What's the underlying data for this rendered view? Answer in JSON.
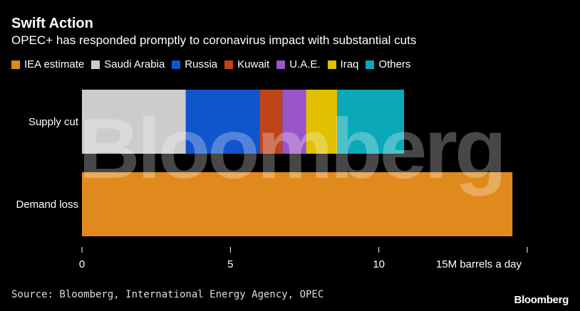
{
  "header": {
    "title": "Swift Action",
    "subtitle": "OPEC+ has responded promptly to coronavirus impact with substantial cuts"
  },
  "footer": {
    "source": "Source: Bloomberg, International Energy Agency, OPEC",
    "brand": "Bloomberg"
  },
  "watermark": "Bloomberg",
  "chart_data": {
    "type": "bar",
    "orientation": "horizontal",
    "stacked": true,
    "title": "Swift Action",
    "subtitle": "OPEC+ has responded promptly to coronavirus impact with substantial cuts",
    "categories": [
      "Supply cut",
      "Demand loss"
    ],
    "series": [
      {
        "name": "IEA estimate",
        "color": "#e08a1e",
        "values": [
          0,
          14.5
        ]
      },
      {
        "name": "Saudi Arabia",
        "color": "#cccccc",
        "values": [
          3.5,
          0
        ]
      },
      {
        "name": "Russia",
        "color": "#1155cc",
        "values": [
          2.5,
          0
        ]
      },
      {
        "name": "Kuwait",
        "color": "#c0441a",
        "values": [
          0.75,
          0
        ]
      },
      {
        "name": "U.A.E.",
        "color": "#9a55c8",
        "values": [
          0.8,
          0
        ]
      },
      {
        "name": "Iraq",
        "color": "#e0c000",
        "values": [
          1.05,
          0
        ]
      },
      {
        "name": "Others",
        "color": "#0aa8b8",
        "values": [
          2.25,
          0
        ]
      }
    ],
    "xlim": [
      0,
      15
    ],
    "x_ticks": [
      {
        "value": 0,
        "label": "0"
      },
      {
        "value": 5,
        "label": "5"
      },
      {
        "value": 10,
        "label": "10"
      },
      {
        "value": 15,
        "label": "15M barrels a day"
      }
    ],
    "legend_position": "top",
    "grid": false
  }
}
